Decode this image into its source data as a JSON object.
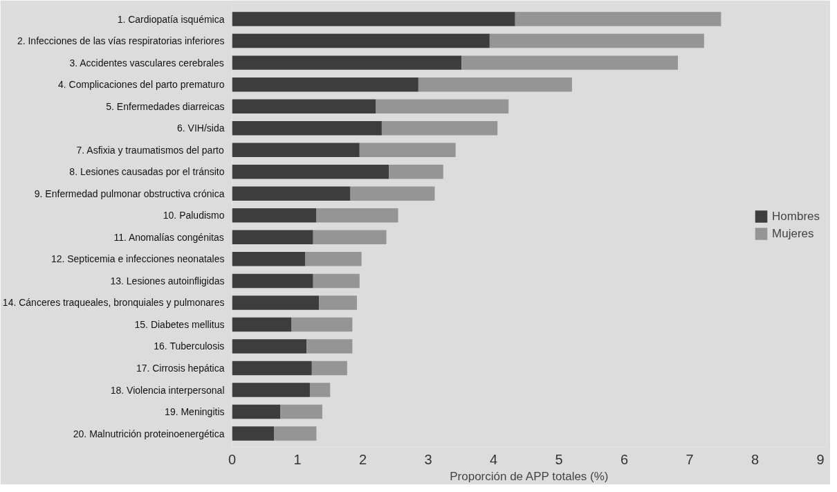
{
  "chart_data": {
    "type": "bar",
    "orientation": "horizontal",
    "stacked": true,
    "xlabel": "Proporción de APP totales (%)",
    "categories": [
      "1. Cardiopatía isquémica",
      "2. Infecciones de las vías respiratorias inferiores",
      "3. Accidentes vasculares cerebrales",
      "4. Complicaciones del parto prematuro",
      "5. Enfermedades diarreicas",
      "6. VIH/sida",
      "7. Asfixia y traumatismos del parto",
      "8. Lesiones causadas por el tránsito",
      "9. Enfermedad pulmonar obstructiva crónica",
      "10. Paludismo",
      "11. Anomalías congénitas",
      "12. Septicemia e infecciones neonatales",
      "13. Lesiones autoinfligidas",
      "14. Cánceres traqueales, bronquiales y pulmonares",
      "15. Diabetes mellitus",
      "16. Tuberculosis",
      "17. Cirrosis hepática",
      "18. Violencia interpersonal",
      "19. Meningitis",
      "20. Malnutrición proteinoenergética"
    ],
    "series": [
      {
        "name": "Hombres",
        "color": "#3d3d3d",
        "values": [
          4.33,
          3.94,
          3.51,
          2.85,
          2.2,
          2.29,
          1.95,
          2.4,
          1.81,
          1.29,
          1.24,
          1.12,
          1.24,
          1.33,
          0.91,
          1.14,
          1.22,
          1.19,
          0.74,
          0.64
        ]
      },
      {
        "name": "Mujeres",
        "color": "#959595",
        "values": [
          3.15,
          3.28,
          3.31,
          2.35,
          2.03,
          1.77,
          1.47,
          0.83,
          1.29,
          1.25,
          1.12,
          0.86,
          0.71,
          0.58,
          0.93,
          0.7,
          0.54,
          0.31,
          0.64,
          0.65
        ]
      }
    ],
    "xlim": [
      0,
      9.1
    ],
    "xticks": [
      0,
      1,
      2,
      3,
      4,
      5,
      6,
      7,
      8,
      9
    ],
    "grid": false,
    "legend": "right"
  }
}
